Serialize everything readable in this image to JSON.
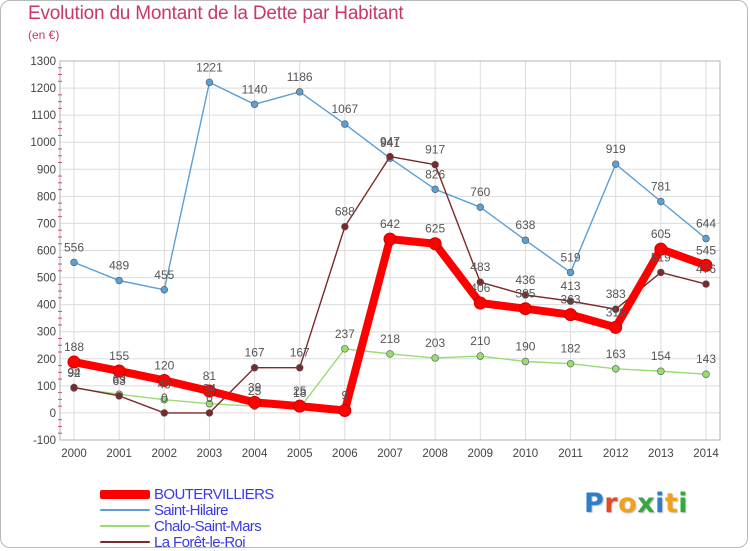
{
  "header": {
    "title": "Evolution du Montant de la Dette par Habitant",
    "subtitle": "(en €)"
  },
  "logo": {
    "text": "Proxiti",
    "colors": [
      "#2d7dc8",
      "#e04b2a",
      "#f0a21c",
      "#3aa640",
      "#2d7dc8",
      "#f0a21c",
      "#3aa640"
    ]
  },
  "chart_data": {
    "type": "line",
    "title": "Evolution du Montant de la Dette par Habitant",
    "subtitle": "(en €)",
    "xlabel": "",
    "ylabel": "",
    "x": [
      2000,
      2001,
      2002,
      2003,
      2004,
      2005,
      2006,
      2007,
      2008,
      2009,
      2010,
      2011,
      2012,
      2013,
      2014
    ],
    "ylim": [
      -100,
      1300
    ],
    "yticks": [
      -100,
      0,
      100,
      200,
      300,
      400,
      500,
      600,
      700,
      800,
      900,
      1000,
      1100,
      1200,
      1300
    ],
    "grid": true,
    "legend_position": "bottom-left",
    "series": [
      {
        "name": "Saint-Hilaire",
        "color": "#5b9fd4",
        "values": [
          556,
          489,
          455,
          1221,
          1140,
          1186,
          1067,
          941,
          826,
          760,
          638,
          519,
          919,
          781,
          644
        ]
      },
      {
        "name": "Chalo-Saint-Mars",
        "color": "#98dd72",
        "values": [
          92,
          69,
          49,
          34,
          25,
          18,
          237,
          218,
          203,
          210,
          190,
          182,
          163,
          154,
          143
        ]
      },
      {
        "name": "La Forêt-le-Roi",
        "color": "#7a2a2a",
        "values": [
          94,
          63,
          0,
          0,
          167,
          167,
          688,
          947,
          917,
          483,
          436,
          413,
          383,
          519,
          476
        ]
      },
      {
        "name": "BOUTERVILLIERS",
        "color": "#ff0000",
        "values": [
          188,
          155,
          120,
          81,
          39,
          25,
          9,
          642,
          625,
          406,
          385,
          363,
          316,
          605,
          545
        ]
      }
    ]
  }
}
